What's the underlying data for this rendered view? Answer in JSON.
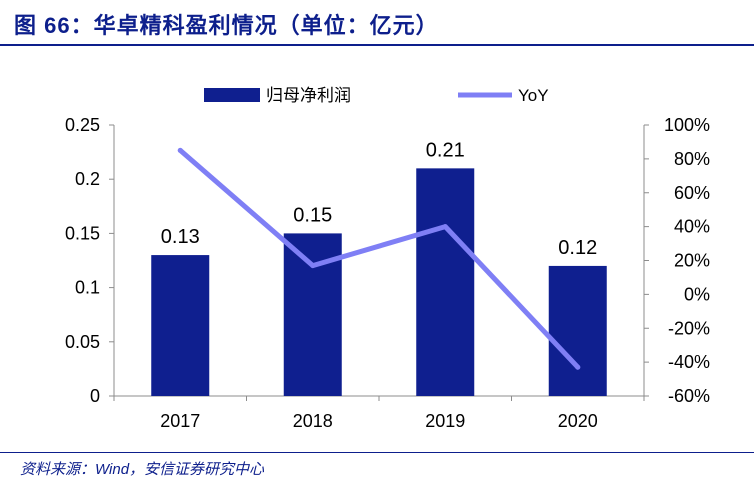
{
  "header": {
    "title": "图 66：华卓精科盈利情况（单位：亿元）"
  },
  "footer": {
    "source": "资料来源：Wind，安信证券研究中心"
  },
  "chart_data": {
    "type": "bar",
    "categories": [
      "2017",
      "2018",
      "2019",
      "2020"
    ],
    "series": [
      {
        "name": "归母净利润",
        "type": "bar",
        "axis": "left",
        "color": "#0f1f8f",
        "values": [
          0.13,
          0.15,
          0.21,
          0.12
        ]
      },
      {
        "name": "YoY",
        "type": "line",
        "axis": "right",
        "color": "#7f7ff5",
        "values": [
          85,
          17,
          40,
          -43
        ]
      }
    ],
    "bar_labels": [
      "0.13",
      "0.15",
      "0.21",
      "0.12"
    ],
    "y_left": {
      "ylim": [
        0,
        0.25
      ],
      "ticks": [
        0,
        0.05,
        0.1,
        0.15,
        0.2,
        0.25
      ],
      "tick_labels": [
        "0",
        "0.05",
        "0.1",
        "0.15",
        "0.2",
        "0.25"
      ]
    },
    "y_right": {
      "ylim": [
        -60,
        100
      ],
      "ticks": [
        -60,
        -40,
        -20,
        0,
        20,
        40,
        60,
        80,
        100
      ],
      "tick_labels": [
        "-60%",
        "-40%",
        "-20%",
        "0%",
        "20%",
        "40%",
        "60%",
        "80%",
        "100%"
      ]
    },
    "legend": {
      "placement": "top-center",
      "entries": [
        "归母净利润",
        "YoY"
      ]
    },
    "grid": false
  }
}
